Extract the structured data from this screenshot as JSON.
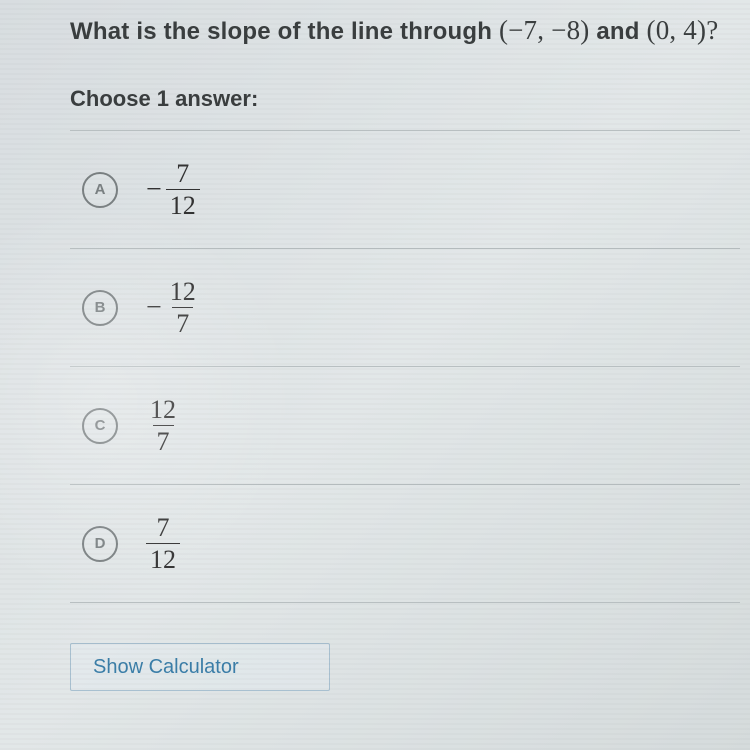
{
  "question": {
    "prefix": "What is the slope of the line through ",
    "point1": "(−7, −8)",
    "mid": " and ",
    "point2": "(0, 4)",
    "suffix": "?"
  },
  "choose_label": "Choose 1 answer:",
  "answers": [
    {
      "letter": "A",
      "negative": true,
      "numerator": "7",
      "denominator": "12"
    },
    {
      "letter": "B",
      "negative": true,
      "numerator": "12",
      "denominator": "7"
    },
    {
      "letter": "C",
      "negative": false,
      "numerator": "12",
      "denominator": "7"
    },
    {
      "letter": "D",
      "negative": false,
      "numerator": "7",
      "denominator": "12"
    }
  ],
  "calculator_label": "Show Calculator",
  "colors": {
    "text": "#3a3e3f",
    "border": "#b8bfc1",
    "radio_border": "#7a8082",
    "link": "#3b7ea8",
    "bg_light": "#e2e7e8"
  }
}
